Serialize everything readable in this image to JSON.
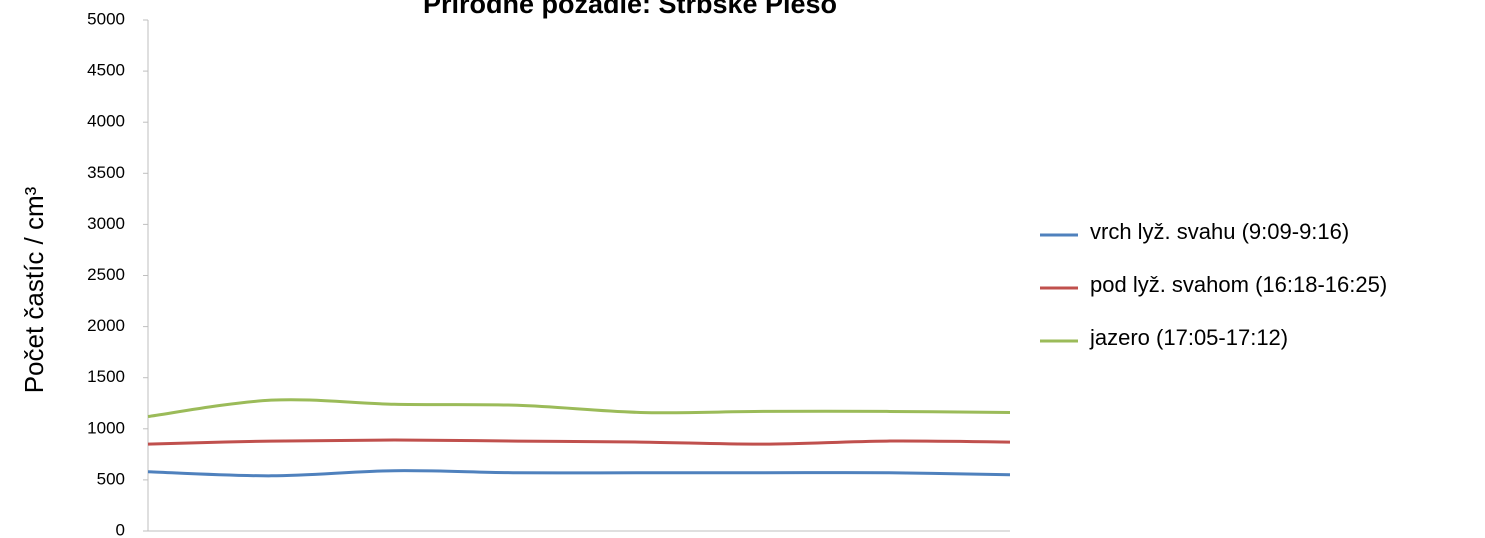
{
  "chart_data": {
    "type": "line",
    "title": "Prírodné pozadie: Štrbské Pleso",
    "y_label": "Počet častíc / cm³",
    "categories": [
      null,
      null,
      null,
      null,
      null,
      null,
      null,
      null
    ],
    "series": [
      {
        "name": "vrch lyž. svahu (9:09-9:16)",
        "color": "#4f81bd",
        "values": [
          580,
          540,
          590,
          570,
          570,
          570,
          570,
          550
        ]
      },
      {
        "name": "pod lyž. svahom (16:18-16:25)",
        "color": "#c0504d",
        "values": [
          850,
          880,
          890,
          880,
          870,
          850,
          880,
          870
        ]
      },
      {
        "name": "jazero (17:05-17:12)",
        "color": "#9bbb59",
        "values": [
          1120,
          1280,
          1240,
          1230,
          1160,
          1170,
          1170,
          1160
        ]
      }
    ],
    "ylim": [
      0,
      5000
    ],
    "yticks": [
      0,
      500,
      1000,
      1500,
      2000,
      2500,
      3000,
      3500,
      4000,
      4500,
      5000
    ],
    "legend": "right"
  }
}
